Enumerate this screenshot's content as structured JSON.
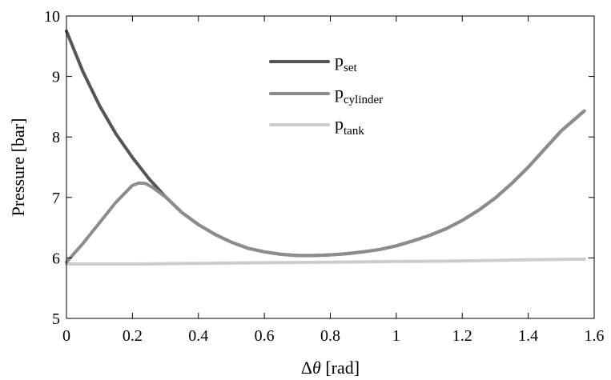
{
  "chart_data": {
    "type": "line",
    "xlabel_prefix": "Δ",
    "xlabel_var": "θ",
    "xlabel_unit": " [rad]",
    "ylabel": "Pressure [bar]",
    "xlim": [
      0,
      1.6
    ],
    "ylim": [
      5,
      10
    ],
    "xticks": [
      0,
      0.2,
      0.4,
      0.6,
      0.8,
      1,
      1.2,
      1.4,
      1.6
    ],
    "xtick_labels": [
      "0",
      "0.2",
      "0.4",
      "0.6",
      "0.8",
      "1",
      "1.2",
      "1.4",
      "1.6"
    ],
    "yticks": [
      5,
      6,
      7,
      8,
      9,
      10
    ],
    "ytick_labels": [
      "5",
      "6",
      "7",
      "8",
      "9",
      "10"
    ],
    "legend_position": "top-center",
    "grid": false,
    "series": [
      {
        "name_base": "p",
        "name_sub": "set",
        "color": "#555555",
        "x": [
          0,
          0.05,
          0.1,
          0.15,
          0.2,
          0.25,
          0.3,
          0.35,
          0.4,
          0.45,
          0.5,
          0.55,
          0.6,
          0.65,
          0.7,
          0.75,
          0.8,
          0.85,
          0.9,
          0.95,
          1.0,
          1.05,
          1.1,
          1.15,
          1.2,
          1.25,
          1.3,
          1.35,
          1.4,
          1.45,
          1.5,
          1.57
        ],
        "y": [
          9.75,
          9.08,
          8.52,
          8.05,
          7.66,
          7.31,
          7.01,
          6.75,
          6.55,
          6.39,
          6.26,
          6.16,
          6.1,
          6.06,
          6.04,
          6.04,
          6.05,
          6.07,
          6.1,
          6.14,
          6.2,
          6.28,
          6.37,
          6.48,
          6.62,
          6.79,
          6.99,
          7.23,
          7.5,
          7.8,
          8.1,
          8.43
        ]
      },
      {
        "name_base": "p",
        "name_sub": "cylinder",
        "color": "#8c8c8c",
        "x": [
          0,
          0.05,
          0.1,
          0.15,
          0.2,
          0.22,
          0.24,
          0.26,
          0.28,
          0.3,
          0.35,
          0.4,
          0.45,
          0.5,
          0.55,
          0.6,
          0.65,
          0.7,
          0.75,
          0.8,
          0.85,
          0.9,
          0.95,
          1.0,
          1.05,
          1.1,
          1.15,
          1.2,
          1.25,
          1.3,
          1.35,
          1.4,
          1.45,
          1.5,
          1.57
        ],
        "y": [
          5.93,
          6.24,
          6.58,
          6.92,
          7.2,
          7.24,
          7.23,
          7.17,
          7.09,
          7.01,
          6.75,
          6.55,
          6.39,
          6.26,
          6.16,
          6.1,
          6.06,
          6.04,
          6.04,
          6.05,
          6.07,
          6.1,
          6.14,
          6.2,
          6.28,
          6.37,
          6.48,
          6.62,
          6.79,
          6.99,
          7.23,
          7.5,
          7.8,
          8.1,
          8.43
        ]
      },
      {
        "name_base": "p",
        "name_sub": "tank",
        "color": "#cccccc",
        "x": [
          0,
          0.2,
          0.4,
          0.6,
          0.8,
          1.0,
          1.2,
          1.4,
          1.57
        ],
        "y": [
          5.9,
          5.9,
          5.91,
          5.92,
          5.93,
          5.94,
          5.95,
          5.97,
          5.98
        ]
      }
    ]
  }
}
